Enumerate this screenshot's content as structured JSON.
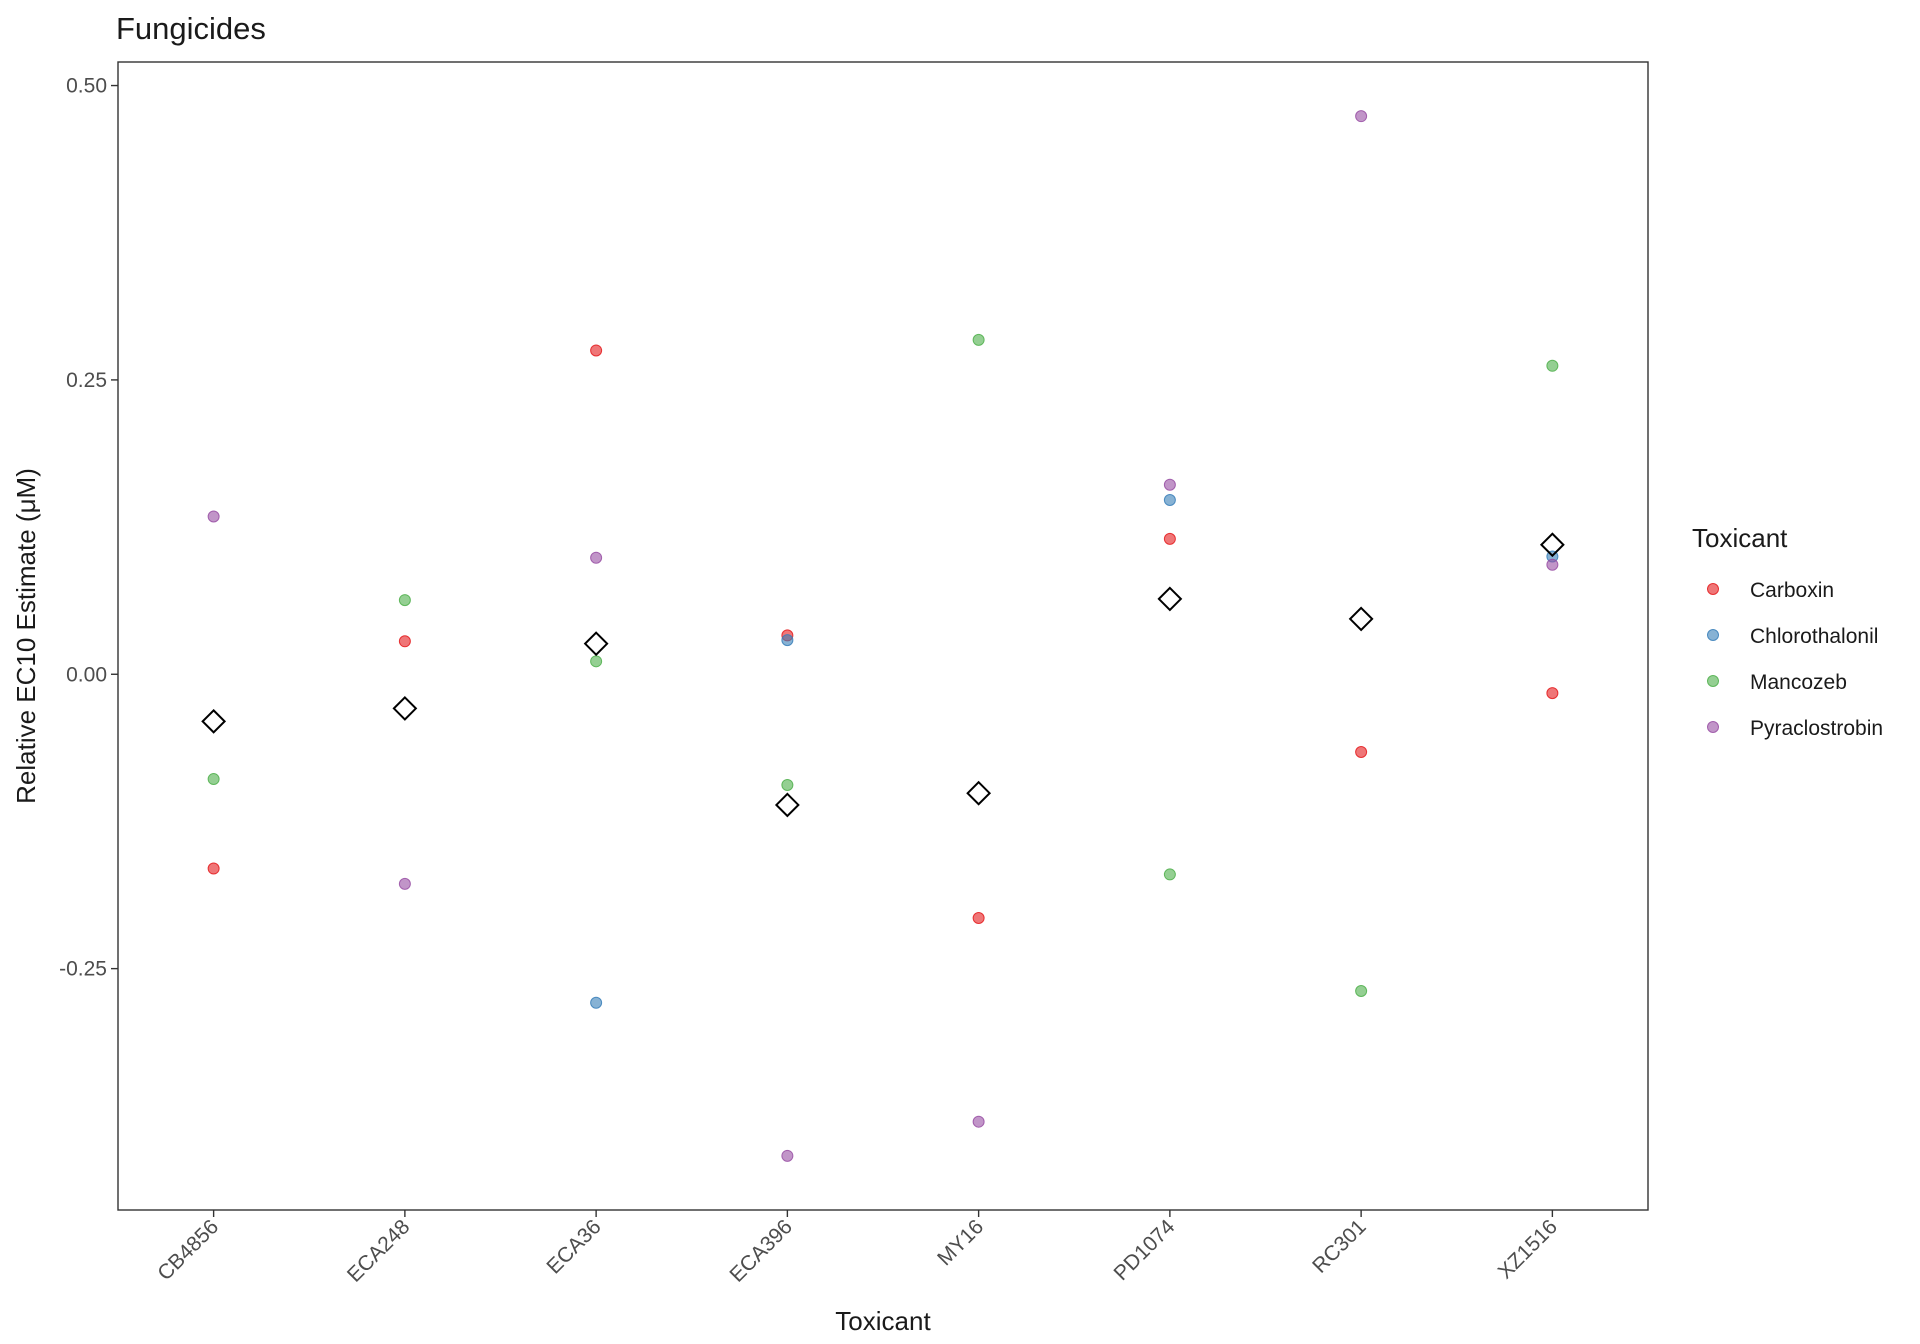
{
  "chart_data": {
    "type": "scatter",
    "title": "Fungicides",
    "xlabel": "Toxicant",
    "ylabel": "Relative EC10 Estimate (μM)",
    "categories": [
      "CB4856",
      "ECA248",
      "ECA36",
      "ECA396",
      "MY16",
      "PD1074",
      "RC301",
      "XZ1516"
    ],
    "ylim": [
      -0.455,
      0.52
    ],
    "yticks": [
      -0.25,
      0.0,
      0.25,
      0.5
    ],
    "ytick_labels": [
      "-0.25",
      "0.00",
      "0.25",
      "0.50"
    ],
    "grid": false,
    "legend": {
      "title": "Toxicant",
      "position": "right"
    },
    "series": [
      {
        "name": "Carboxin",
        "color": "#E41A1C",
        "values": [
          -0.165,
          0.028,
          0.275,
          0.033,
          -0.207,
          0.115,
          -0.066,
          -0.016
        ]
      },
      {
        "name": "Chlorothalonil",
        "color": "#377EB8",
        "values": [
          null,
          null,
          -0.279,
          0.029,
          null,
          0.148,
          null,
          0.1
        ]
      },
      {
        "name": "Mancozeb",
        "color": "#4DAF4A",
        "values": [
          -0.089,
          0.063,
          0.011,
          -0.094,
          0.284,
          -0.17,
          -0.269,
          0.262
        ]
      },
      {
        "name": "Pyraclostrobin",
        "color": "#984EA3",
        "values": [
          0.134,
          -0.178,
          0.099,
          -0.409,
          -0.38,
          0.161,
          0.474,
          0.093
        ]
      }
    ],
    "mean_markers": {
      "shape": "diamond",
      "values": [
        -0.04,
        -0.029,
        0.026,
        -0.111,
        -0.101,
        0.064,
        0.047,
        0.11
      ]
    }
  }
}
